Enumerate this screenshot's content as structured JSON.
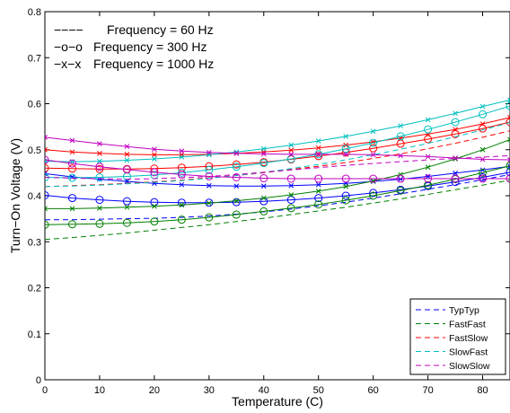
{
  "chart_data": {
    "type": "line",
    "xlabel": "Temperature (C)",
    "ylabel": "Turn−On Voltage (V)",
    "xlim": [
      0,
      85
    ],
    "ylim": [
      0,
      0.8
    ],
    "xticks": [
      0,
      10,
      20,
      30,
      40,
      50,
      60,
      70,
      80
    ],
    "xtick_labels": [
      "0",
      "10",
      "20",
      "30",
      "40",
      "50",
      "60",
      "70",
      "80"
    ],
    "yticks": [
      0,
      0.1,
      0.2,
      0.3,
      0.4,
      0.5,
      0.6,
      0.7,
      0.8
    ],
    "ytick_labels": [
      "0",
      "0.1",
      "0.2",
      "0.3",
      "0.4",
      "0.5",
      "0.6",
      "0.7",
      "0.8"
    ],
    "grid": false,
    "annotations": [
      {
        "marker": "−−−−",
        "text": "Frequency = 60 Hz"
      },
      {
        "marker": "−o−o",
        "text": "Frequency = 300 Hz"
      },
      {
        "marker": "−x−x",
        "text": "Frequency = 1000 Hz"
      }
    ],
    "legend": {
      "placement": "bottom-right",
      "entries": [
        "TypTyp",
        "FastFast",
        "FastSlow",
        "SlowFast",
        "SlowSlow"
      ]
    },
    "colors": {
      "TypTyp": "#0000ff",
      "FastFast": "#008000",
      "FastSlow": "#ff0000",
      "SlowFast": "#00bfbf",
      "SlowSlow": "#bf00bf"
    },
    "frequency_styles": {
      "60 Hz": "dashed",
      "300 Hz": "solid-circle",
      "1000 Hz": "solid-x"
    },
    "x": [
      0,
      5,
      10,
      15,
      20,
      25,
      30,
      35,
      40,
      45,
      50,
      55,
      60,
      65,
      70,
      75,
      80,
      85
    ],
    "series": [
      {
        "legend": "TypTyp",
        "frequency": "60 Hz",
        "values": [
          0.348,
          0.348,
          0.349,
          0.35,
          0.351,
          0.353,
          0.356,
          0.36,
          0.365,
          0.371,
          0.378,
          0.386,
          0.395,
          0.404,
          0.414,
          0.424,
          0.435,
          0.446
        ]
      },
      {
        "legend": "TypTyp",
        "frequency": "300 Hz",
        "values": [
          0.401,
          0.395,
          0.391,
          0.388,
          0.386,
          0.385,
          0.385,
          0.386,
          0.388,
          0.391,
          0.395,
          0.4,
          0.406,
          0.413,
          0.421,
          0.43,
          0.44,
          0.451
        ]
      },
      {
        "legend": "TypTyp",
        "frequency": "1000 Hz",
        "values": [
          0.448,
          0.441,
          0.436,
          0.431,
          0.427,
          0.424,
          0.422,
          0.421,
          0.421,
          0.422,
          0.424,
          0.427,
          0.431,
          0.436,
          0.442,
          0.449,
          0.456,
          0.464
        ]
      },
      {
        "legend": "FastFast",
        "frequency": "60 Hz",
        "values": [
          0.305,
          0.309,
          0.314,
          0.319,
          0.325,
          0.331,
          0.337,
          0.344,
          0.351,
          0.359,
          0.367,
          0.375,
          0.384,
          0.393,
          0.403,
          0.413,
          0.423,
          0.434
        ]
      },
      {
        "legend": "FastFast",
        "frequency": "300 Hz",
        "values": [
          0.337,
          0.338,
          0.339,
          0.341,
          0.344,
          0.348,
          0.353,
          0.359,
          0.366,
          0.373,
          0.381,
          0.39,
          0.4,
          0.411,
          0.423,
          0.436,
          0.45,
          0.465
        ]
      },
      {
        "legend": "FastFast",
        "frequency": "1000 Hz",
        "values": [
          0.372,
          0.372,
          0.373,
          0.375,
          0.377,
          0.38,
          0.384,
          0.389,
          0.395,
          0.402,
          0.41,
          0.42,
          0.432,
          0.446,
          0.462,
          0.48,
          0.5,
          0.522
        ]
      },
      {
        "legend": "FastSlow",
        "frequency": "60 Hz",
        "values": [
          0.42,
          0.422,
          0.424,
          0.427,
          0.43,
          0.434,
          0.439,
          0.444,
          0.45,
          0.457,
          0.464,
          0.472,
          0.481,
          0.491,
          0.502,
          0.514,
          0.527,
          0.541
        ]
      },
      {
        "legend": "FastSlow",
        "frequency": "300 Hz",
        "values": [
          0.46,
          0.459,
          0.458,
          0.458,
          0.459,
          0.461,
          0.464,
          0.468,
          0.473,
          0.479,
          0.486,
          0.494,
          0.503,
          0.513,
          0.523,
          0.534,
          0.546,
          0.56
        ]
      },
      {
        "legend": "FastSlow",
        "frequency": "1000 Hz",
        "values": [
          0.5,
          0.495,
          0.492,
          0.49,
          0.489,
          0.489,
          0.49,
          0.492,
          0.495,
          0.499,
          0.504,
          0.51,
          0.517,
          0.525,
          0.534,
          0.544,
          0.556,
          0.57
        ]
      },
      {
        "legend": "SlowFast",
        "frequency": "60 Hz",
        "values": [
          0.42,
          0.421,
          0.423,
          0.426,
          0.429,
          0.433,
          0.438,
          0.444,
          0.451,
          0.459,
          0.468,
          0.478,
          0.489,
          0.501,
          0.514,
          0.528,
          0.543,
          0.559
        ]
      },
      {
        "legend": "SlowFast",
        "frequency": "300 Hz",
        "values": [
          0.44,
          0.439,
          0.44,
          0.442,
          0.445,
          0.45,
          0.456,
          0.463,
          0.471,
          0.48,
          0.49,
          0.502,
          0.515,
          0.529,
          0.544,
          0.56,
          0.577,
          0.595
        ]
      },
      {
        "legend": "SlowFast",
        "frequency": "1000 Hz",
        "values": [
          0.475,
          0.474,
          0.475,
          0.477,
          0.48,
          0.484,
          0.489,
          0.495,
          0.502,
          0.51,
          0.519,
          0.529,
          0.54,
          0.552,
          0.565,
          0.579,
          0.594,
          0.608
        ]
      },
      {
        "legend": "SlowSlow",
        "frequency": "60 Hz",
        "values": [
          0.44,
          0.438,
          0.437,
          0.436,
          0.437,
          0.439,
          0.442,
          0.446,
          0.451,
          0.456,
          0.461,
          0.466,
          0.47,
          0.474,
          0.478,
          0.481,
          0.484,
          0.487
        ]
      },
      {
        "legend": "SlowSlow",
        "frequency": "300 Hz",
        "values": [
          0.478,
          0.47,
          0.463,
          0.457,
          0.451,
          0.446,
          0.442,
          0.44,
          0.438,
          0.437,
          0.437,
          0.437,
          0.437,
          0.437,
          0.437,
          0.437,
          0.437,
          0.437
        ]
      },
      {
        "legend": "SlowSlow",
        "frequency": "1000 Hz",
        "values": [
          0.527,
          0.52,
          0.513,
          0.507,
          0.501,
          0.497,
          0.494,
          0.492,
          0.491,
          0.49,
          0.49,
          0.49,
          0.489,
          0.487,
          0.485,
          0.482,
          0.479,
          0.478
        ]
      }
    ]
  }
}
